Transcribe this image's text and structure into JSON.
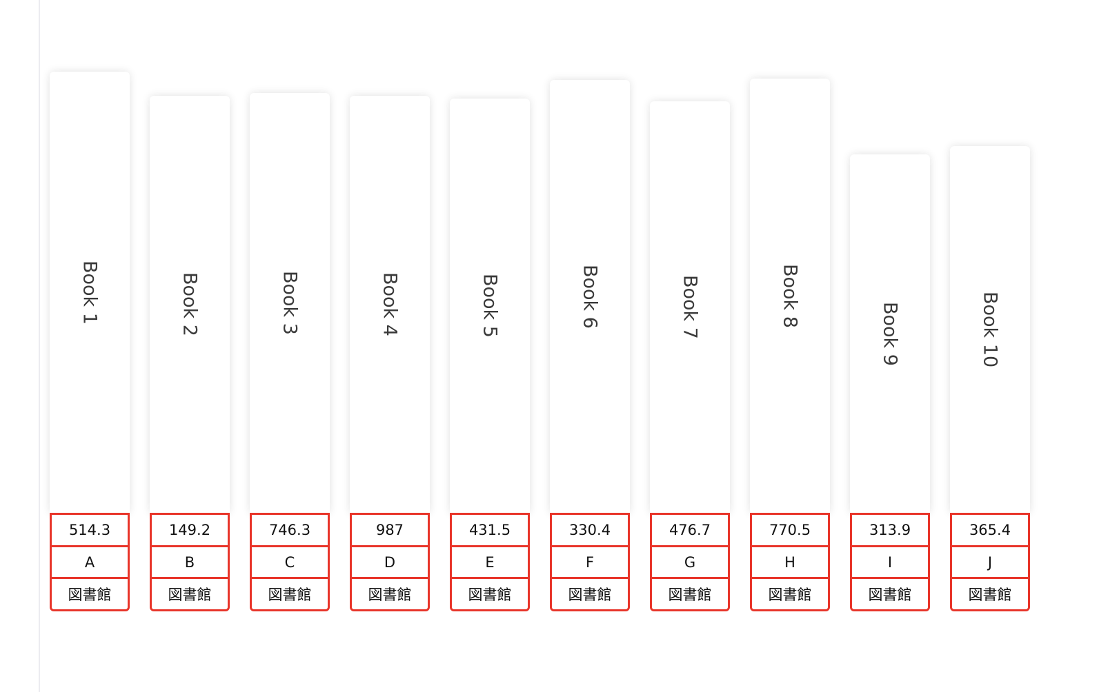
{
  "books": [
    {
      "title": "Book 1",
      "value": "514.3",
      "letter": "A",
      "library": "図書館"
    },
    {
      "title": "Book 2",
      "value": "149.2",
      "letter": "B",
      "library": "図書館"
    },
    {
      "title": "Book 3",
      "value": "746.3",
      "letter": "C",
      "library": "図書館"
    },
    {
      "title": "Book 4",
      "value": "987",
      "letter": "D",
      "library": "図書館"
    },
    {
      "title": "Book 5",
      "value": "431.5",
      "letter": "E",
      "library": "図書館"
    },
    {
      "title": "Book 6",
      "value": "330.4",
      "letter": "F",
      "library": "図書館"
    },
    {
      "title": "Book 7",
      "value": "476.7",
      "letter": "G",
      "library": "図書館"
    },
    {
      "title": "Book 8",
      "value": "770.5",
      "letter": "H",
      "library": "図書館"
    },
    {
      "title": "Book 9",
      "value": "313.9",
      "letter": "I",
      "library": "図書館"
    },
    {
      "title": "Book 10",
      "value": "365.4",
      "letter": "J",
      "library": "図書館"
    }
  ],
  "colors": {
    "label_border": "#e8352a",
    "spine": "#ffffff"
  }
}
